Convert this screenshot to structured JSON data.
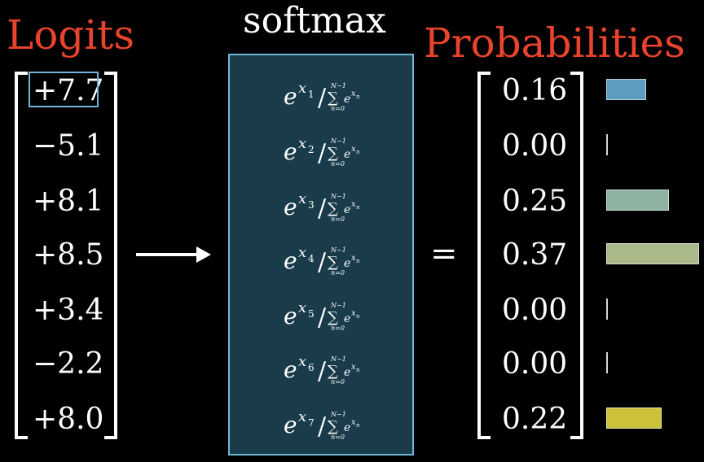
{
  "headings": {
    "logits": "Logits",
    "softmax": "softmax",
    "probabilities": "Probabilities"
  },
  "logits": [
    "+7.7",
    "−5.1",
    "+8.1",
    "+8.5",
    "+3.4",
    "−2.2",
    "+8.0"
  ],
  "probabilities": [
    "0.16",
    "0.00",
    "0.25",
    "0.37",
    "0.00",
    "0.00",
    "0.22"
  ],
  "formula": {
    "base": "e",
    "exponent_var": "x",
    "subscripts": [
      "1",
      "2",
      "3",
      "4",
      "5",
      "6",
      "7"
    ],
    "sum_upper": "N−1",
    "sum_lower": "n=0",
    "sum_symbol": "∑",
    "sum_term_base": "e",
    "sum_term_exponent": "x",
    "sum_term_subscript": "n",
    "slash": "/"
  },
  "equals": "=",
  "bars": [
    {
      "value": 0.16,
      "color": "#5b9cbf"
    },
    {
      "value": 0.0,
      "color": "#8fa8a4"
    },
    {
      "value": 0.25,
      "color": "#8fb3a0"
    },
    {
      "value": 0.37,
      "color": "#a9b98a"
    },
    {
      "value": 0.0,
      "color": "#cfcfa0"
    },
    {
      "value": 0.0,
      "color": "#cfcfa0"
    },
    {
      "value": 0.22,
      "color": "#ccc23a"
    }
  ],
  "colors": {
    "heading_red": "#e8432d",
    "softmax_fill": "#193b4a",
    "softmax_border": "#6fb6d6",
    "highlight_border": "#6fb6d6"
  }
}
